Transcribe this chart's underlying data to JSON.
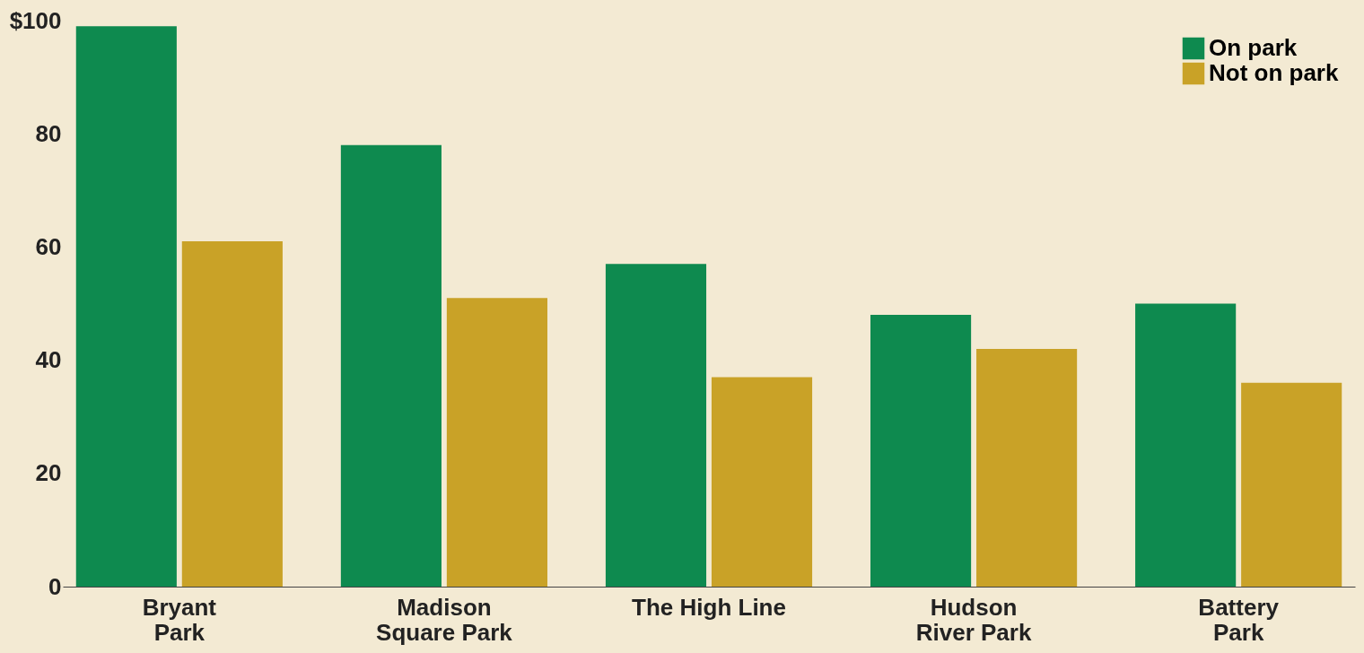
{
  "chart_data": {
    "type": "bar",
    "categories": [
      "Bryant\nPark",
      "Madison\nSquare Park",
      "The High Line",
      "Hudson\nRiver Park",
      "Battery\nPark"
    ],
    "series": [
      {
        "name": "On park",
        "color": "#0e8a4f",
        "values": [
          99,
          78,
          57,
          48,
          50
        ]
      },
      {
        "name": "Not on park",
        "color": "#c9a227",
        "values": [
          61,
          51,
          37,
          42,
          36
        ]
      }
    ],
    "ylim": [
      0,
      100
    ],
    "yticks": [
      0,
      20,
      40,
      60,
      80,
      {
        "value": 100,
        "label": "$100"
      }
    ],
    "grid": false,
    "legend": "top right"
  }
}
